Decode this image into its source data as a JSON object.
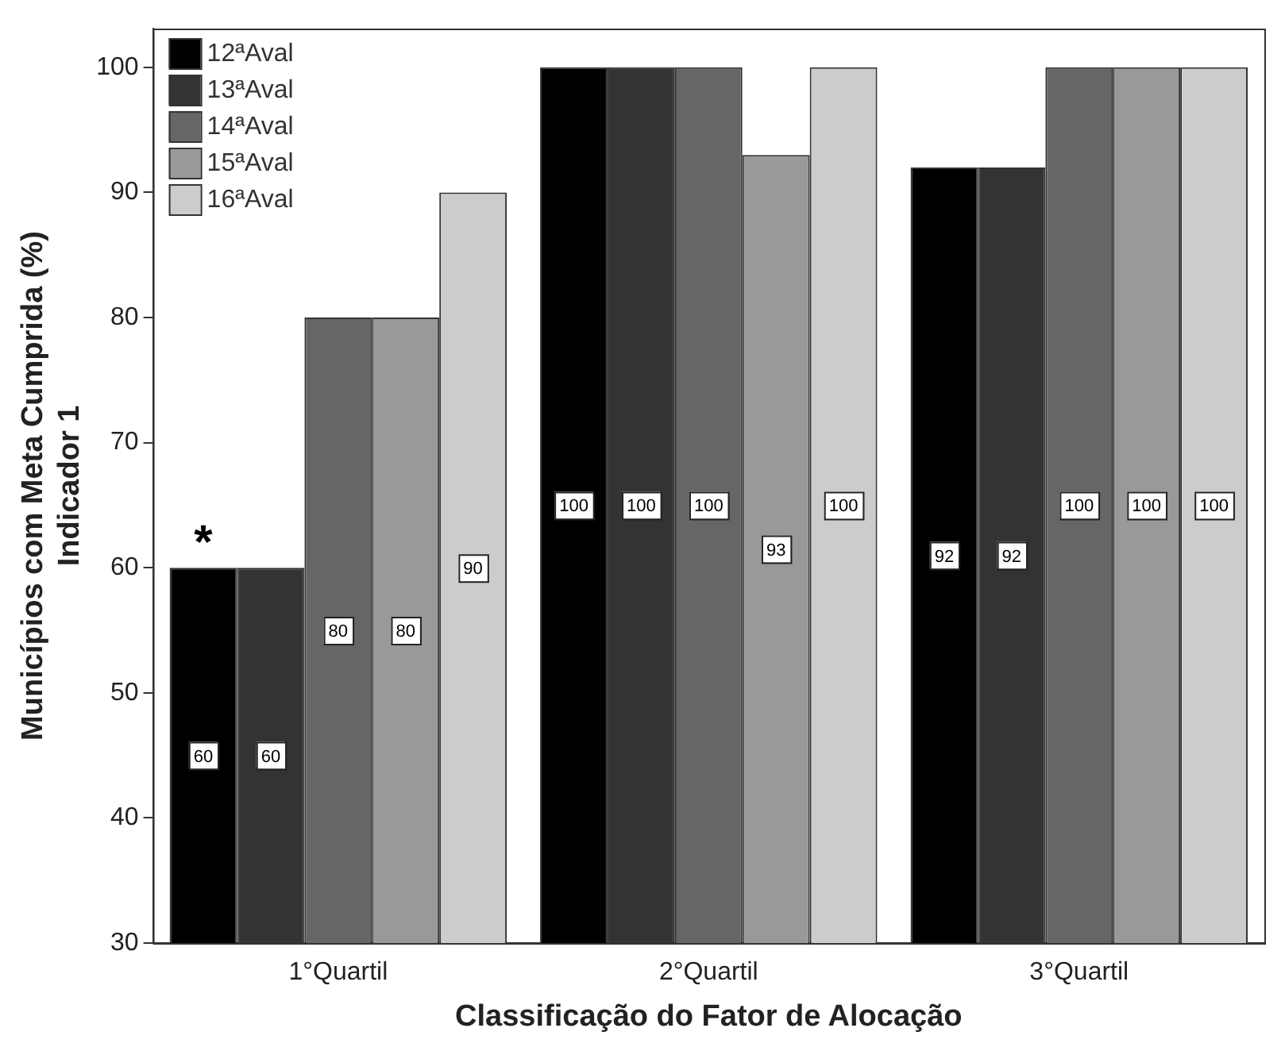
{
  "chart_data": {
    "type": "bar",
    "xlabel": "Classificação do Fator de Alocação",
    "ylabel": "Municípios com Meta Cumprida (%)\nIndicador 1",
    "categories": [
      "1°Quartil",
      "2°Quartil",
      "3°Quartil"
    ],
    "series": [
      {
        "name": "12ªAval",
        "color": "#000000",
        "values": [
          60,
          100,
          92
        ]
      },
      {
        "name": "13ªAval",
        "color": "#333333",
        "values": [
          60,
          100,
          92
        ]
      },
      {
        "name": "14ªAval",
        "color": "#666666",
        "values": [
          80,
          100,
          100
        ]
      },
      {
        "name": "15ªAval",
        "color": "#999999",
        "values": [
          80,
          93,
          100
        ]
      },
      {
        "name": "16ªAval",
        "color": "#cccccc",
        "values": [
          90,
          100,
          100
        ]
      }
    ],
    "ylim": [
      30,
      103.1
    ],
    "yticks": [
      30,
      40,
      50,
      60,
      70,
      80,
      90,
      100
    ],
    "grid": false,
    "legend": "top left",
    "data_labels": true,
    "annotations": [
      "*"
    ]
  }
}
